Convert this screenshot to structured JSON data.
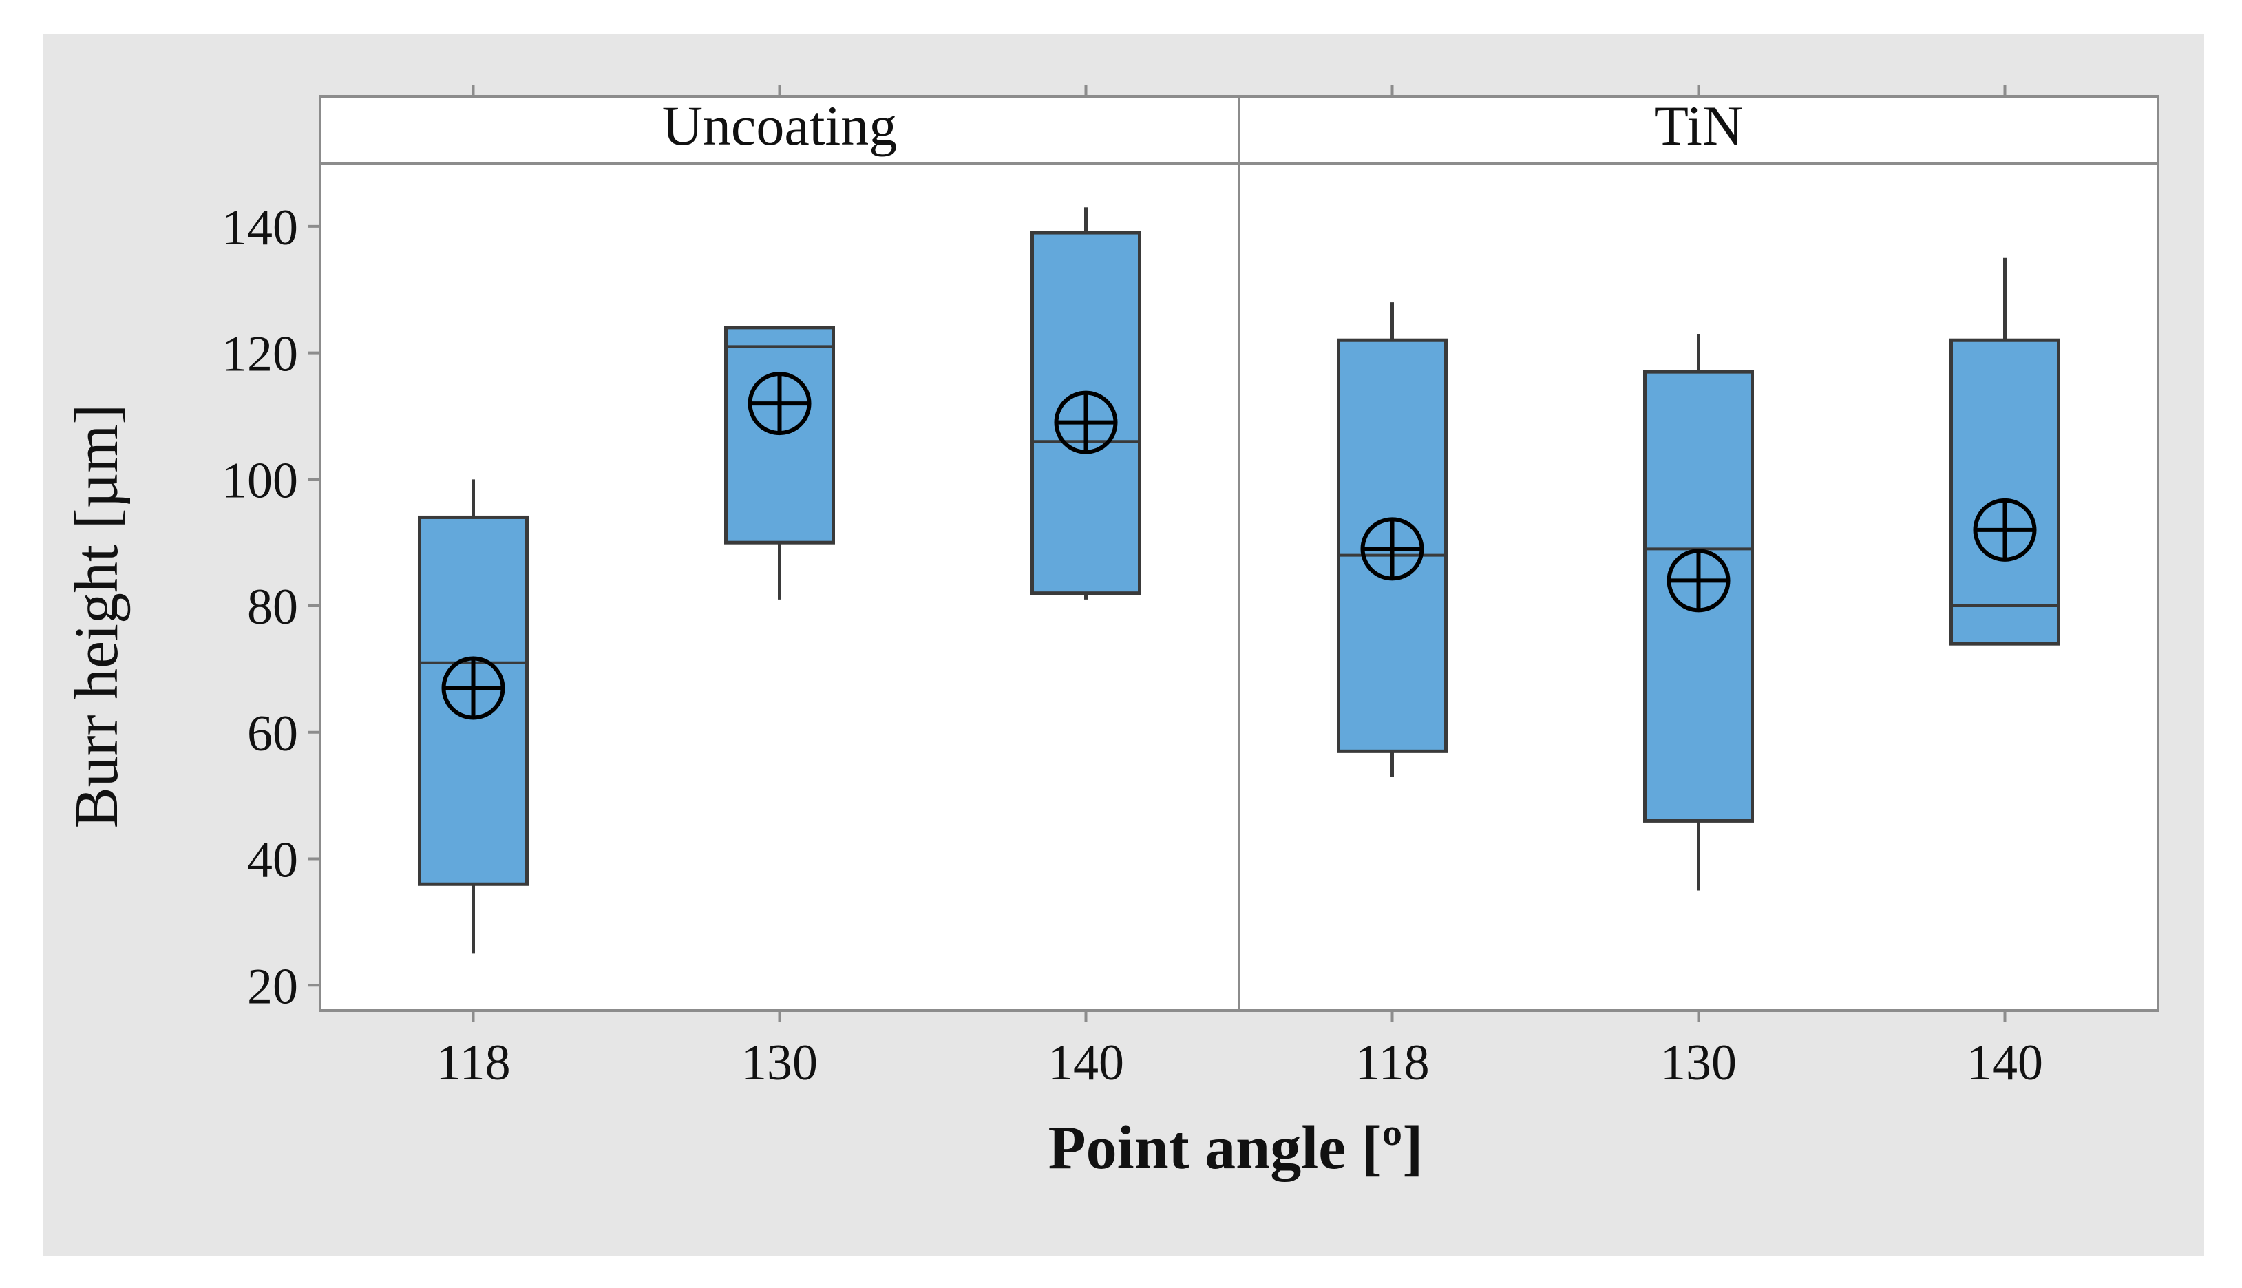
{
  "chart_data": {
    "type": "boxplot",
    "xlabel": "Point angle [º]",
    "ylabel": "Burr height [µm]",
    "ylim": [
      16,
      150
    ],
    "yticks": [
      20,
      40,
      60,
      80,
      100,
      120,
      140
    ],
    "colors": {
      "background": "#e6e6e6",
      "plot_bg": "#ffffff",
      "frame": "#8c8c8c",
      "box_fill": "#63a8db",
      "box_edge": "#3a3a3a",
      "whisker": "#3a3a3a",
      "mean_marker": "#000000"
    },
    "mean_symbol": "circled-plus",
    "panels": [
      {
        "title": "Uncoating",
        "categories": [
          "118",
          "130",
          "140"
        ],
        "boxes": [
          {
            "category": "118",
            "whisker_low": 25,
            "q1": 36,
            "median": 71,
            "q3": 94,
            "whisker_high": 100,
            "mean": 67
          },
          {
            "category": "130",
            "whisker_low": 81,
            "q1": 90,
            "median": 121,
            "q3": 124,
            "whisker_high": 124,
            "mean": 112
          },
          {
            "category": "140",
            "whisker_low": 81,
            "q1": 82,
            "median": 106,
            "q3": 139,
            "whisker_high": 143,
            "mean": 109
          }
        ]
      },
      {
        "title": "TiN",
        "categories": [
          "118",
          "130",
          "140"
        ],
        "boxes": [
          {
            "category": "118",
            "whisker_low": 53,
            "q1": 57,
            "median": 88,
            "q3": 122,
            "whisker_high": 128,
            "mean": 89
          },
          {
            "category": "130",
            "whisker_low": 35,
            "q1": 46,
            "median": 89,
            "q3": 117,
            "whisker_high": 123,
            "mean": 84
          },
          {
            "category": "140",
            "whisker_low": 74,
            "q1": 74,
            "median": 80,
            "q3": 122,
            "whisker_high": 135,
            "mean": 92
          }
        ]
      }
    ]
  }
}
